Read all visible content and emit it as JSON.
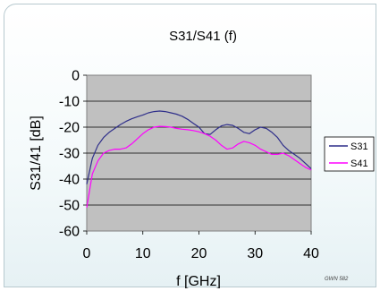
{
  "chart_data": {
    "type": "line",
    "title": "S31/S41 (f)",
    "xlabel": "f [GHz]",
    "ylabel": "S31/41 [dB]",
    "xlim": [
      0,
      40
    ],
    "ylim": [
      -60,
      0
    ],
    "x_ticks": [
      "0",
      "10",
      "20",
      "30",
      "40"
    ],
    "y_ticks": [
      "0",
      "-10",
      "-20",
      "-30",
      "-40",
      "-50",
      "-60"
    ],
    "grid": true,
    "legend": "right",
    "series": [
      {
        "name": "S31",
        "color": "#2e2e8a",
        "points": [
          [
            0,
            -42
          ],
          [
            1,
            -32
          ],
          [
            2,
            -27
          ],
          [
            3,
            -24
          ],
          [
            4,
            -22
          ],
          [
            5,
            -20.5
          ],
          [
            6,
            -19
          ],
          [
            7,
            -17.8
          ],
          [
            8,
            -16.8
          ],
          [
            9,
            -16
          ],
          [
            10,
            -15.3
          ],
          [
            11,
            -14.5
          ],
          [
            12,
            -14
          ],
          [
            13,
            -13.8
          ],
          [
            14,
            -14
          ],
          [
            15,
            -14.5
          ],
          [
            16,
            -15
          ],
          [
            17,
            -15.8
          ],
          [
            18,
            -17
          ],
          [
            19,
            -18.5
          ],
          [
            20,
            -20
          ],
          [
            21,
            -22.5
          ],
          [
            22,
            -22.8
          ],
          [
            23,
            -21
          ],
          [
            24,
            -19.5
          ],
          [
            25,
            -19
          ],
          [
            26,
            -19.3
          ],
          [
            27,
            -20.5
          ],
          [
            28,
            -22
          ],
          [
            29,
            -22.5
          ],
          [
            30,
            -21
          ],
          [
            31,
            -20
          ],
          [
            32,
            -20.5
          ],
          [
            33,
            -22
          ],
          [
            34,
            -24
          ],
          [
            35,
            -27
          ],
          [
            36,
            -29
          ],
          [
            37,
            -30.5
          ],
          [
            38,
            -32
          ],
          [
            39,
            -34
          ],
          [
            40,
            -36
          ]
        ]
      },
      {
        "name": "S41",
        "color": "#ff00ff",
        "points": [
          [
            0,
            -51
          ],
          [
            1,
            -38
          ],
          [
            2,
            -33
          ],
          [
            3,
            -30
          ],
          [
            4,
            -29
          ],
          [
            5,
            -28.5
          ],
          [
            6,
            -28.5
          ],
          [
            7,
            -28
          ],
          [
            8,
            -26.5
          ],
          [
            9,
            -24.5
          ],
          [
            10,
            -22.5
          ],
          [
            11,
            -21
          ],
          [
            12,
            -20
          ],
          [
            13,
            -19.7
          ],
          [
            14,
            -19.8
          ],
          [
            15,
            -20
          ],
          [
            16,
            -20.5
          ],
          [
            17,
            -20.8
          ],
          [
            18,
            -21
          ],
          [
            19,
            -21.3
          ],
          [
            20,
            -21.8
          ],
          [
            21,
            -22.5
          ],
          [
            22,
            -23.5
          ],
          [
            23,
            -25
          ],
          [
            24,
            -27
          ],
          [
            25,
            -28.5
          ],
          [
            26,
            -28
          ],
          [
            27,
            -26.5
          ],
          [
            28,
            -25.5
          ],
          [
            29,
            -26
          ],
          [
            30,
            -27
          ],
          [
            31,
            -28.5
          ],
          [
            32,
            -29.5
          ],
          [
            33,
            -30.5
          ],
          [
            34,
            -30.5
          ],
          [
            35,
            -30
          ],
          [
            36,
            -31
          ],
          [
            37,
            -32.5
          ],
          [
            38,
            -34
          ],
          [
            39,
            -35.5
          ],
          [
            40,
            -36.5
          ]
        ]
      }
    ],
    "credit": "GWN 582"
  }
}
